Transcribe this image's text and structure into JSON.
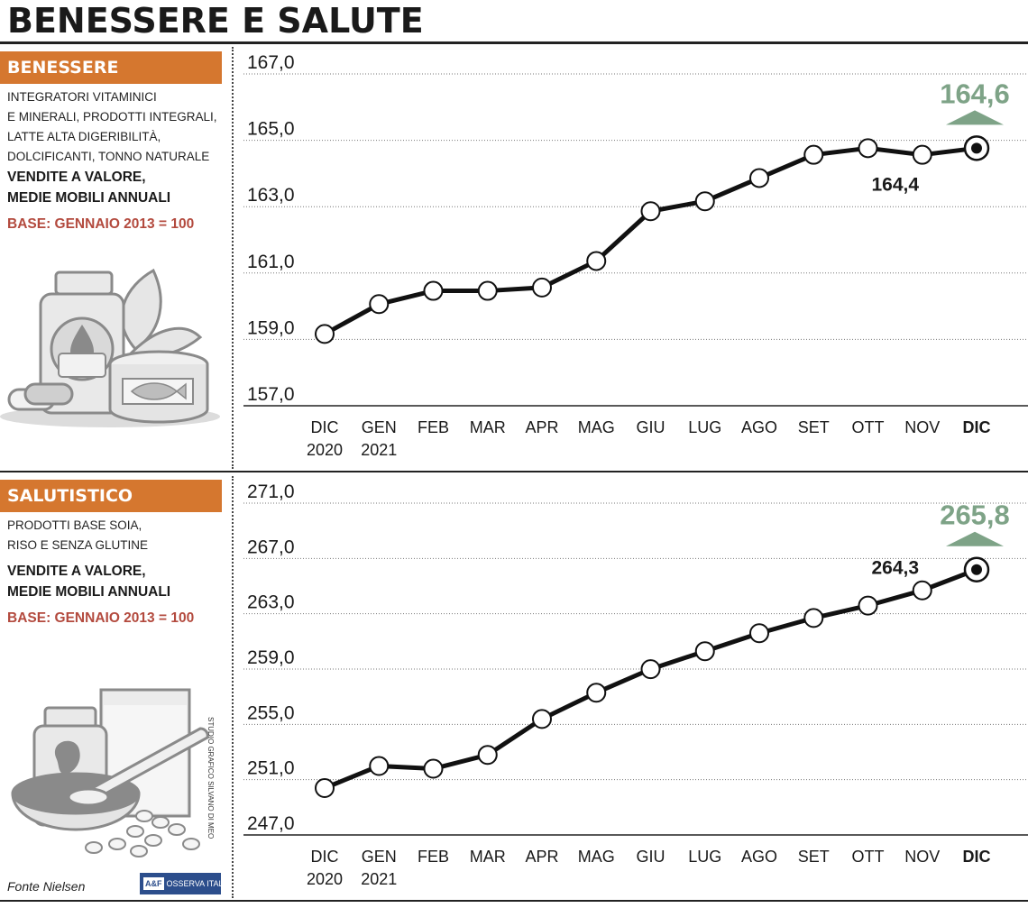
{
  "title": "BENESSERE E SALUTE",
  "source": "Fonte Nielsen",
  "credit": "STUDIO GRAFICO SILVANO DI MEO",
  "logo": {
    "mark": "A&F",
    "text": "OSSERVA ITALIA"
  },
  "colors": {
    "accent": "#d5772f",
    "highlight": "#7ea387",
    "base_text": "#b34a3e",
    "line": "#111111"
  },
  "panels": [
    {
      "tag": "BENESSERE",
      "description": "INTEGRATORI VITAMINICI\nE MINERALI, PRODOTTI INTEGRALI,\nLATTE ALTA DIGERIBILITÀ,\nDOLCIFICANTI, TONNO NATURALE",
      "measure": "VENDITE A VALORE,\nMEDIE MOBILI ANNUALI",
      "base": "BASE: GENNAIO 2013 = 100",
      "illustration": "jar-leaf-tuna-can-icon"
    },
    {
      "tag": "SALUTISTICO",
      "description": "PRODOTTI BASE SOIA,\nRISO E SENZA GLUTINE",
      "measure": "VENDITE A VALORE,\nMEDIE MOBILI ANNUALI",
      "base": "BASE: GENNAIO 2013 = 100",
      "illustration": "bean-jar-bowl-glass-icon"
    }
  ],
  "chart_data": [
    {
      "type": "line",
      "categories": [
        "DIC\n2020",
        "GEN\n2021",
        "FEB",
        "MAR",
        "APR",
        "MAG",
        "GIU",
        "LUG",
        "AGO",
        "SET",
        "OTT",
        "NOV",
        "DIC"
      ],
      "values": [
        159.0,
        159.9,
        160.3,
        160.3,
        160.4,
        161.2,
        162.7,
        163.0,
        163.7,
        164.4,
        164.6,
        164.4,
        164.6
      ],
      "ylim": [
        157.0,
        167.0
      ],
      "yticks": [
        "167,0",
        "165,0",
        "163,0",
        "161,0",
        "159,0",
        "157,0"
      ],
      "last_label": "164,6",
      "prev_label": "164,4",
      "grid": "horizontal dotted",
      "bold_last_category": true
    },
    {
      "type": "line",
      "categories": [
        "DIC\n2020",
        "GEN\n2021",
        "FEB",
        "MAR",
        "APR",
        "MAG",
        "GIU",
        "LUG",
        "AGO",
        "SET",
        "OTT",
        "NOV",
        "DIC"
      ],
      "values": [
        250.0,
        251.6,
        251.4,
        252.4,
        255.0,
        256.9,
        258.6,
        259.9,
        261.2,
        262.3,
        263.2,
        264.3,
        265.8
      ],
      "ylim": [
        247.0,
        271.0
      ],
      "yticks": [
        "271,0",
        "267,0",
        "263,0",
        "259,0",
        "255,0",
        "251,0",
        "247,0"
      ],
      "last_label": "265,8",
      "prev_label": "264,3",
      "grid": "horizontal dotted",
      "bold_last_category": true
    }
  ]
}
